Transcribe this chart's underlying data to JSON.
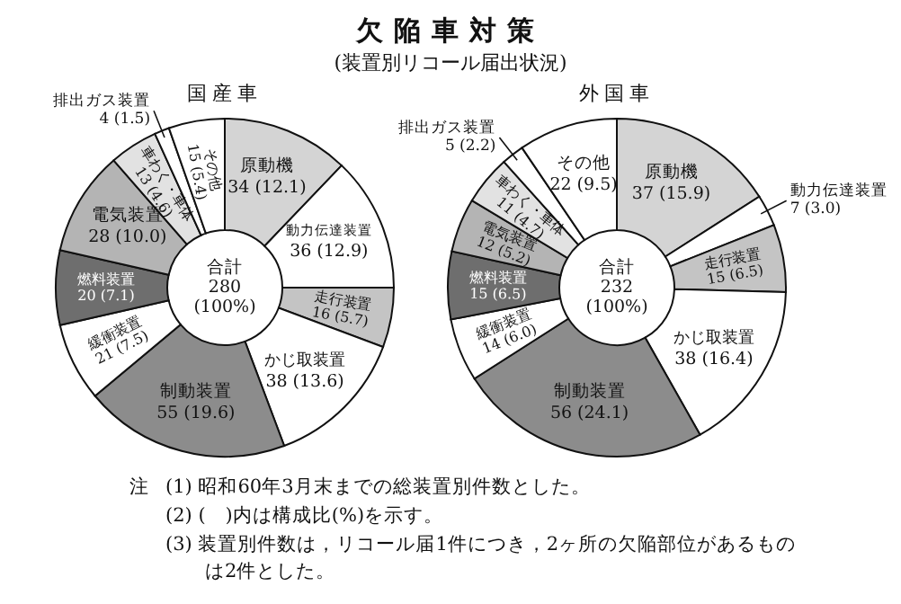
{
  "chart_data": [
    {
      "type": "other",
      "title": "欠陥車対策",
      "subtitle": "(装置別リコール届出状況)",
      "annotations": [
        "注",
        "(1) 昭和60年3月末までの総装置別件数とした。",
        "(2) (　)内は構成比(%)を示す。",
        "(3) 装置別件数は，リコール届1件につき，2ヶ所の欠陥部位があるものは2件とした。"
      ]
    },
    {
      "type": "donut",
      "title": "国産車",
      "categories": [
        "原動機",
        "動力伝達装置",
        "走行装置",
        "かじ取装置",
        "制動装置",
        "緩衝装置",
        "燃料装置",
        "電気装置",
        "車わく・車体",
        "排出ガス装置",
        "その他"
      ],
      "values": [
        34,
        36,
        16,
        38,
        55,
        21,
        20,
        28,
        13,
        4,
        15
      ],
      "value_labels": [
        "34 (12.1)",
        "36 (12.9)",
        "16 (5.7)",
        "38 (13.6)",
        "55 (19.6)",
        "21 (7.5)",
        "20 (7.1)",
        "28 (10.0)",
        "13 (4.6)",
        "4 (1.5)",
        "15 (5.4)"
      ],
      "colors": [
        "#d4d4d4",
        "#ffffff",
        "#c4c4c4",
        "#ffffff",
        "#8c8c8c",
        "#ffffff",
        "#6e6e6e",
        "#b4b4b4",
        "#e2e2e2",
        "#ffffff",
        "#ffffff"
      ],
      "annotations": [
        "合計",
        "280",
        "(100%)"
      ]
    },
    {
      "type": "donut",
      "title": "外国車",
      "categories": [
        "原動機",
        "動力伝達装置",
        "走行装置",
        "かじ取装置",
        "制動装置",
        "緩衝装置",
        "燃料装置",
        "電気装置",
        "車わく・車体",
        "排出ガス装置",
        "その他"
      ],
      "values": [
        37,
        7,
        15,
        38,
        56,
        14,
        15,
        12,
        11,
        5,
        22
      ],
      "value_labels": [
        "37 (15.9)",
        "7 (3.0)",
        "15 (6.5)",
        "38 (16.4)",
        "56 (24.1)",
        "14 (6.0)",
        "15 (6.5)",
        "12 (5.2)",
        "11 (4.7)",
        "5 (2.2)",
        "22 (9.5)"
      ],
      "colors": [
        "#d4d4d4",
        "#ffffff",
        "#c4c4c4",
        "#ffffff",
        "#8c8c8c",
        "#ffffff",
        "#6e6e6e",
        "#b4b4b4",
        "#e2e2e2",
        "#ffffff",
        "#ffffff"
      ],
      "annotations": [
        "合計",
        "232",
        "(100%)"
      ]
    }
  ]
}
